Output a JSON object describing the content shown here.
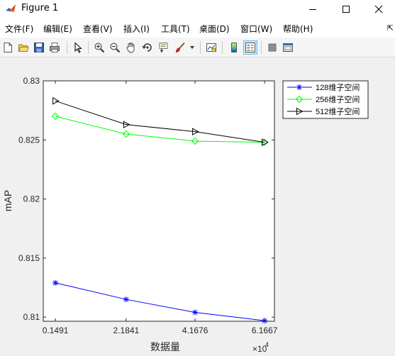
{
  "window": {
    "title": "Figure 1",
    "buttons": {
      "minimize": "minimize",
      "maximize": "maximize",
      "close": "close"
    }
  },
  "menu": {
    "items": [
      "文件(F)",
      "编辑(E)",
      "查看(V)",
      "插入(I)",
      "工具(T)",
      "桌面(D)",
      "窗口(W)",
      "帮助(H)"
    ],
    "overflow": "⇱"
  },
  "toolbar": {
    "tools": [
      "new-figure-icon",
      "open-file-icon",
      "save-icon",
      "print-icon",
      "select-arrow-icon",
      "zoom-in-icon",
      "zoom-out-icon",
      "pan-hand-icon",
      "rotate-3d-icon",
      "data-cursor-icon",
      "brush-icon",
      "link-plot-icon",
      "colorbar-icon",
      "legend-icon",
      "hide-plot-tools-icon",
      "show-plot-tools-icon"
    ]
  },
  "colors": {
    "series_128": "#0000ff",
    "series_256": "#00ff00",
    "series_512": "#000000"
  },
  "chart_data": {
    "type": "line",
    "x": [
      1491,
      21841,
      41676,
      61667
    ],
    "xticks": [
      "0.1491",
      "2.1841",
      "4.1676",
      "6.1667"
    ],
    "x_multiplier_base": "×10",
    "x_multiplier_exp": "4",
    "xlabel": "数据量",
    "ylabel": "mAP",
    "ylim": [
      0.81,
      0.83
    ],
    "yticks": [
      "0.81",
      "0.815",
      "0.82",
      "0.825",
      "0.83"
    ],
    "grid": false,
    "legend_placement": "outside-top-right",
    "series": [
      {
        "name": "128维子空间",
        "marker": "asterisk",
        "color": "#0000ff",
        "values": [
          0.8129,
          0.8115,
          0.8104,
          0.8097
        ]
      },
      {
        "name": "256维子空间",
        "marker": "diamond",
        "color": "#00ff00",
        "values": [
          0.827,
          0.8255,
          0.8249,
          0.8248
        ]
      },
      {
        "name": "512维子空间",
        "marker": "triangle-right",
        "color": "#000000",
        "values": [
          0.8283,
          0.8263,
          0.8257,
          0.8248
        ]
      }
    ]
  }
}
